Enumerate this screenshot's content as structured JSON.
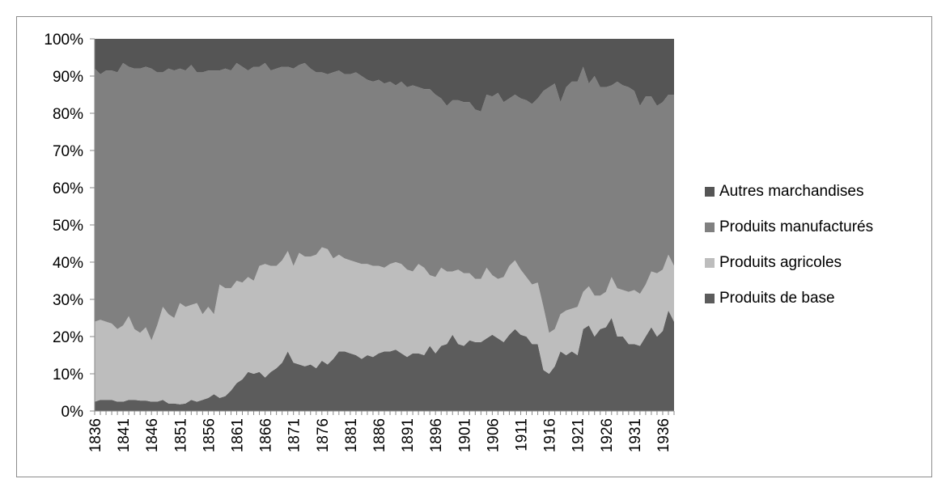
{
  "chart_data": {
    "type": "area",
    "stacked_percent": true,
    "title": "",
    "xlabel": "",
    "ylabel": "",
    "ylim": [
      0,
      100
    ],
    "y_ticks": [
      "0%",
      "10%",
      "20%",
      "30%",
      "40%",
      "50%",
      "60%",
      "70%",
      "80%",
      "90%",
      "100%"
    ],
    "x_tick_labels": [
      "1836",
      "1841",
      "1846",
      "1851",
      "1856",
      "1861",
      "1866",
      "1871",
      "1876",
      "1881",
      "1886",
      "1891",
      "1896",
      "1901",
      "1906",
      "1911",
      "1916",
      "1921",
      "1926",
      "1931",
      "1936"
    ],
    "legend_position": "right",
    "grid": false,
    "x": [
      1836,
      1837,
      1838,
      1839,
      1840,
      1841,
      1842,
      1843,
      1844,
      1845,
      1846,
      1847,
      1848,
      1849,
      1850,
      1851,
      1852,
      1853,
      1854,
      1855,
      1856,
      1857,
      1858,
      1859,
      1860,
      1861,
      1862,
      1863,
      1864,
      1865,
      1866,
      1867,
      1868,
      1869,
      1870,
      1871,
      1872,
      1873,
      1874,
      1875,
      1876,
      1877,
      1878,
      1879,
      1880,
      1881,
      1882,
      1883,
      1884,
      1885,
      1886,
      1887,
      1888,
      1889,
      1890,
      1891,
      1892,
      1893,
      1894,
      1895,
      1896,
      1897,
      1898,
      1899,
      1900,
      1901,
      1902,
      1903,
      1904,
      1905,
      1906,
      1907,
      1908,
      1909,
      1910,
      1911,
      1912,
      1913,
      1914,
      1915,
      1916,
      1917,
      1918,
      1919,
      1920,
      1921,
      1922,
      1923,
      1924,
      1925,
      1926,
      1927,
      1928,
      1929,
      1930,
      1931,
      1932,
      1933,
      1934,
      1935,
      1936,
      1937,
      1938
    ],
    "cumulative": [
      [
        2.5,
        3,
        3,
        3,
        2.5,
        2.5,
        3,
        3,
        2.8,
        2.8,
        2.5,
        2.5,
        3,
        2,
        2,
        1.8,
        2,
        3,
        2.5,
        3,
        3.5,
        4.5,
        3.5,
        4,
        5.5,
        7.5,
        8.5,
        10.5,
        10,
        10.5,
        9,
        10.5,
        11.5,
        13,
        16,
        13,
        12.5,
        12,
        12.5,
        11.5,
        13.5,
        12.5,
        14,
        16,
        16,
        15.5,
        15,
        14,
        15,
        14.5,
        15.5,
        16,
        16,
        16.5,
        15.5,
        14.5,
        15.5,
        15.5,
        15,
        17.5,
        15.5,
        17.5,
        18,
        20.5,
        18,
        17.5,
        19,
        18.5,
        18.5,
        19.5,
        20.5,
        19.5,
        18.5,
        20.5,
        22,
        20.5,
        20,
        18,
        18,
        11,
        10,
        12,
        16,
        15,
        16,
        15,
        22,
        23,
        20,
        22,
        22.5,
        25,
        20,
        20,
        18,
        18,
        17.5,
        20,
        22.5,
        20,
        21.5,
        27,
        24
      ],
      [
        24,
        24.5,
        24,
        23.5,
        22,
        23,
        25.5,
        22,
        21,
        22.5,
        19,
        23,
        28,
        26,
        25,
        29,
        28,
        28.5,
        29,
        26,
        28,
        26,
        34,
        33,
        33,
        35,
        34.5,
        36,
        35,
        39,
        39.5,
        39,
        39,
        40.5,
        43,
        39,
        42.5,
        41.5,
        41.5,
        42,
        44,
        43.5,
        41,
        42,
        41,
        40.5,
        40,
        39.5,
        39.5,
        39,
        39,
        38.5,
        39.5,
        40,
        39.5,
        38,
        37.5,
        39.5,
        38.5,
        36.5,
        36,
        38.5,
        37.5,
        37.5,
        38,
        37,
        37,
        35.5,
        35.5,
        38.5,
        36.5,
        35.5,
        36,
        39,
        40.5,
        38,
        36,
        34,
        34.5,
        28,
        21,
        22,
        26,
        27,
        27.5,
        28,
        32,
        33.5,
        31,
        31,
        32,
        36,
        33,
        32.5,
        32,
        32.5,
        31.5,
        34,
        37.5,
        37,
        38,
        42,
        39
      ],
      [
        92,
        90.5,
        91.5,
        91.5,
        91,
        93.5,
        92.5,
        92,
        92,
        92.5,
        92,
        91,
        91,
        92,
        91.5,
        92,
        91.5,
        93,
        91,
        91,
        91.5,
        91.5,
        91.5,
        92,
        91.5,
        93.5,
        92.5,
        91.5,
        92.5,
        92.5,
        93.5,
        91.5,
        92,
        92.5,
        92.5,
        92,
        93,
        93.5,
        92,
        91,
        91,
        90.5,
        91,
        91.5,
        90.5,
        90.5,
        91,
        90,
        89,
        88.5,
        89,
        88,
        88.5,
        87.5,
        88.5,
        87,
        87.5,
        87,
        86.5,
        86.5,
        85,
        84,
        82,
        83.5,
        83.5,
        83,
        83,
        81,
        80.5,
        85,
        84.5,
        85.5,
        83,
        84,
        85,
        84,
        83.5,
        82.5,
        84,
        86,
        87,
        88,
        83,
        87,
        88.5,
        88.5,
        92.5,
        88,
        90,
        87,
        87,
        87.5,
        88.5,
        87.5,
        87,
        86,
        82,
        84.5,
        84.5,
        82,
        83,
        85,
        85
      ]
    ],
    "series": [
      {
        "name": "Produits de base",
        "color": "#5c5c5c"
      },
      {
        "name": "Produits agricoles",
        "color": "#bdbdbd"
      },
      {
        "name": "Produits manufacturés",
        "color": "#808080"
      },
      {
        "name": "Autres marchandises",
        "color": "#555555"
      }
    ],
    "legend_order": [
      "Autres marchandises",
      "Produits manufacturés",
      "Produits agricoles",
      "Produits de base"
    ]
  }
}
